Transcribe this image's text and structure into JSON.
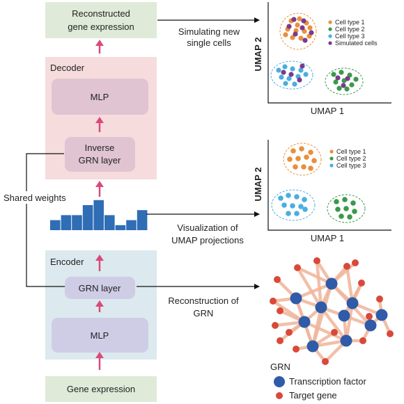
{
  "boxes": {
    "reconstructed": [
      "Reconstructed",
      "gene expression"
    ],
    "decoder_title": "Decoder",
    "decoder_mlp": "MLP",
    "inverse_grn": [
      "Inverse",
      "GRN layer"
    ],
    "encoder_title": "Encoder",
    "grn_layer": "GRN layer",
    "encoder_mlp": "MLP",
    "gene_expression": "Gene expression"
  },
  "shared_weights": "Shared weights",
  "arrow_labels": {
    "simulating": [
      "Simulating new",
      "single cells"
    ],
    "visualization": [
      "Visualization of",
      "UMAP projections"
    ],
    "reconstruction": [
      "Reconstruction of",
      "GRN"
    ]
  },
  "histogram": {
    "values": [
      2,
      3,
      3,
      5,
      6,
      3,
      1,
      2,
      4
    ],
    "color": "#2f6db5"
  },
  "umap_top": {
    "xlabel": "UMAP 1",
    "ylabel": "UMAP 2",
    "legend": [
      {
        "label": "Cell type 1",
        "color": "#e8903a"
      },
      {
        "label": "Cell type 2",
        "color": "#3a9a4a"
      },
      {
        "label": "Cell type 3",
        "color": "#4aaee0"
      },
      {
        "label": "Simulated cells",
        "color": "#7a3a8e"
      }
    ]
  },
  "umap_mid": {
    "xlabel": "UMAP 1",
    "ylabel": "UMAP 2",
    "legend": [
      {
        "label": "Cell type 1",
        "color": "#e8903a"
      },
      {
        "label": "Cell type 2",
        "color": "#3a9a4a"
      },
      {
        "label": "Cell type 3",
        "color": "#4aaee0"
      }
    ]
  },
  "grn": {
    "title": "GRN",
    "legend": [
      {
        "label": "Transcription factor",
        "color": "#2f5ba8"
      },
      {
        "label": "Target gene",
        "color": "#d9493a"
      }
    ]
  },
  "colors": {
    "green_box": "#dfead8",
    "decoder_bg": "#f6dcdc",
    "decoder_inner": "#e0c4d2",
    "encoder_bg": "#dce9ee",
    "encoder_inner": "#cfcde6",
    "pink_arrow": "#d94a7a",
    "edge": "#f0b59a"
  }
}
